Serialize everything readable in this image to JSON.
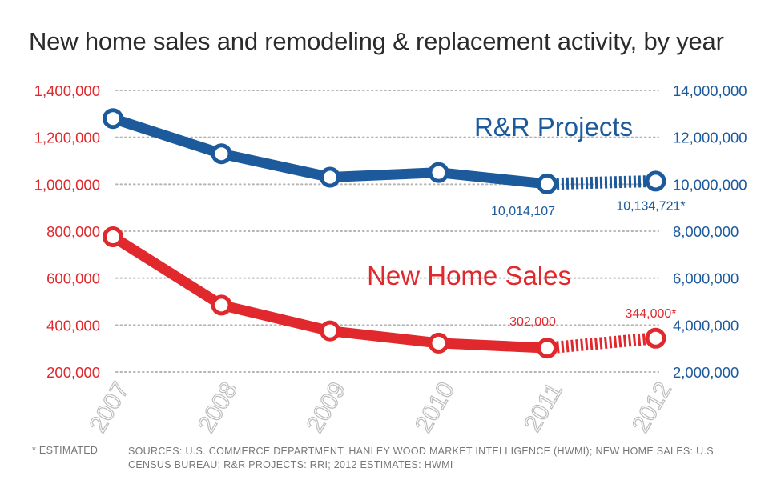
{
  "title": "New home sales and remodeling & replacement activity, by year",
  "footnote": "* ESTIMATED",
  "sources": "SOURCES: U.S. COMMERCE DEPARTMENT, HANLEY WOOD MARKET INTELLIGENCE (HWMI); NEW HOME SALES: U.S. CENSUS BUREAU; R&R PROJECTS: RRI; 2012 ESTIMATES: HWMI",
  "colors": {
    "red": "#e0282d",
    "blue": "#1d5a9c",
    "grid": "#b5b5b5",
    "tick": "#bdbdbd"
  },
  "chart_data": {
    "type": "line",
    "x": [
      "2007",
      "2008",
      "2009",
      "2010",
      "2011",
      "2012"
    ],
    "estimated_from_index": 4,
    "grid": true,
    "left_axis": {
      "color": "#e0282d",
      "range": [
        200000,
        1400000
      ],
      "ticks": [
        "1,400,000",
        "1,200,000",
        "1,000,000",
        "800,000",
        "600,000",
        "400,000",
        "200,000"
      ],
      "tick_values": [
        1400000,
        1200000,
        1000000,
        800000,
        600000,
        400000,
        200000
      ]
    },
    "right_axis": {
      "color": "#1d5a9c",
      "range": [
        2000000,
        14000000
      ],
      "ticks": [
        "14,000,000",
        "12,000,000",
        "10,000,000",
        "8,000,000",
        "6,000,000",
        "4,000,000",
        "2,000,000"
      ],
      "tick_values": [
        14000000,
        12000000,
        10000000,
        8000000,
        6000000,
        4000000,
        2000000
      ]
    },
    "series": [
      {
        "name": "R&R Projects",
        "axis": "right",
        "color": "#1d5a9c",
        "values": [
          12800000,
          11300000,
          10300000,
          10500000,
          10014107,
          10134721
        ],
        "labels": [
          {
            "index": 4,
            "text": "10,014,107"
          },
          {
            "index": 5,
            "text": "10,134,721*"
          }
        ]
      },
      {
        "name": "New Home Sales",
        "axis": "left",
        "color": "#e0282d",
        "values": [
          776000,
          485000,
          375000,
          323000,
          302000,
          344000
        ],
        "labels": [
          {
            "index": 4,
            "text": "302,000"
          },
          {
            "index": 5,
            "text": "344,000*"
          }
        ]
      }
    ]
  }
}
